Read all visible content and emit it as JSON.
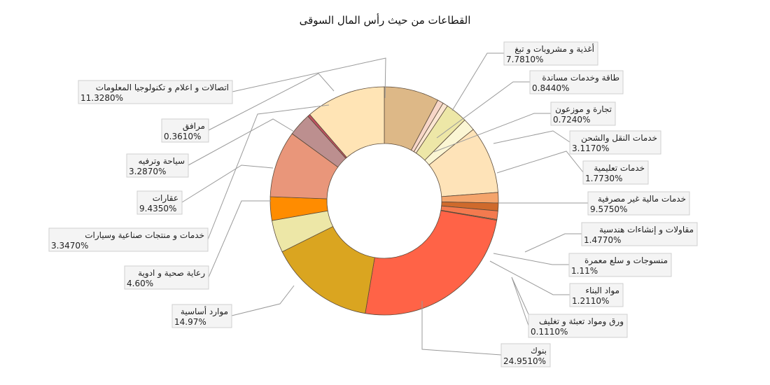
{
  "chart_data": {
    "type": "pie",
    "title": "القطاعات من حيث رأس المال السوقى",
    "slices": [
      {
        "name": "أغذية و مشروبات و تبغ",
        "value_label": "7.7810%",
        "value": 7.781,
        "color": "#ddb887"
      },
      {
        "name": "طاقة وخدمات مساندة",
        "value_label": "0.8440%",
        "value": 0.844,
        "color": "#f7d6c8"
      },
      {
        "name": "تجارة و موزعون",
        "value_label": "0.7240%",
        "value": 0.724,
        "color": "#fbe6d2"
      },
      {
        "name": "خدمات النقل والشحن",
        "value_label": "3.1170%",
        "value": 3.117,
        "color": "#ede7a7"
      },
      {
        "name": "خدمات تعليمية",
        "value_label": "1.7730%",
        "value": 1.773,
        "color": "#fbf6d4"
      },
      {
        "name": "خدمات مالية غير مصرفية",
        "value_label": "9.5750%",
        "value": 9.575,
        "color": "#fee3b8"
      },
      {
        "name": "مقاولات و إنشاءات هندسية",
        "value_label": "1.4770%",
        "value": 1.477,
        "color": "#f4a46b"
      },
      {
        "name": "منسوجات و سلع معمرة",
        "value_label": "1.11%",
        "value": 1.11,
        "color": "#cf6a2c"
      },
      {
        "name": "مواد البناء",
        "value_label": "1.2110%",
        "value": 1.211,
        "color": "#f37a4f"
      },
      {
        "name": "ورق ومواد تعبئة و تغليف",
        "value_label": "0.1110%",
        "value": 0.111,
        "color": "#e3a66f"
      },
      {
        "name": "بنوك",
        "value_label": "24.9510%",
        "value": 24.951,
        "color": "#ff6347"
      },
      {
        "name": "موارد أساسية",
        "value_label": "14.97%",
        "value": 14.97,
        "color": "#daa520"
      },
      {
        "name": "رعاية صحية و ادوية",
        "value_label": "4.60%",
        "value": 4.6,
        "color": "#ede7a7"
      },
      {
        "name": "خدمات و منتجات صناعية وسيارات",
        "value_label": "3.3470%",
        "value": 3.347,
        "color": "#ff8c00"
      },
      {
        "name": "عقارات",
        "value_label": "9.4350%",
        "value": 9.435,
        "color": "#e9967a"
      },
      {
        "name": "سياحة وترفيه",
        "value_label": "3.2870%",
        "value": 3.287,
        "color": "#bc8f8f"
      },
      {
        "name": "مرافق",
        "value_label": "0.3610%",
        "value": 0.361,
        "color": "#c05060"
      },
      {
        "name": "اتصالات و  اعلام و تكنولوجيا المعلومات",
        "value_label": "11.3280%",
        "value": 11.328,
        "color": "#ffe4b5"
      }
    ]
  }
}
